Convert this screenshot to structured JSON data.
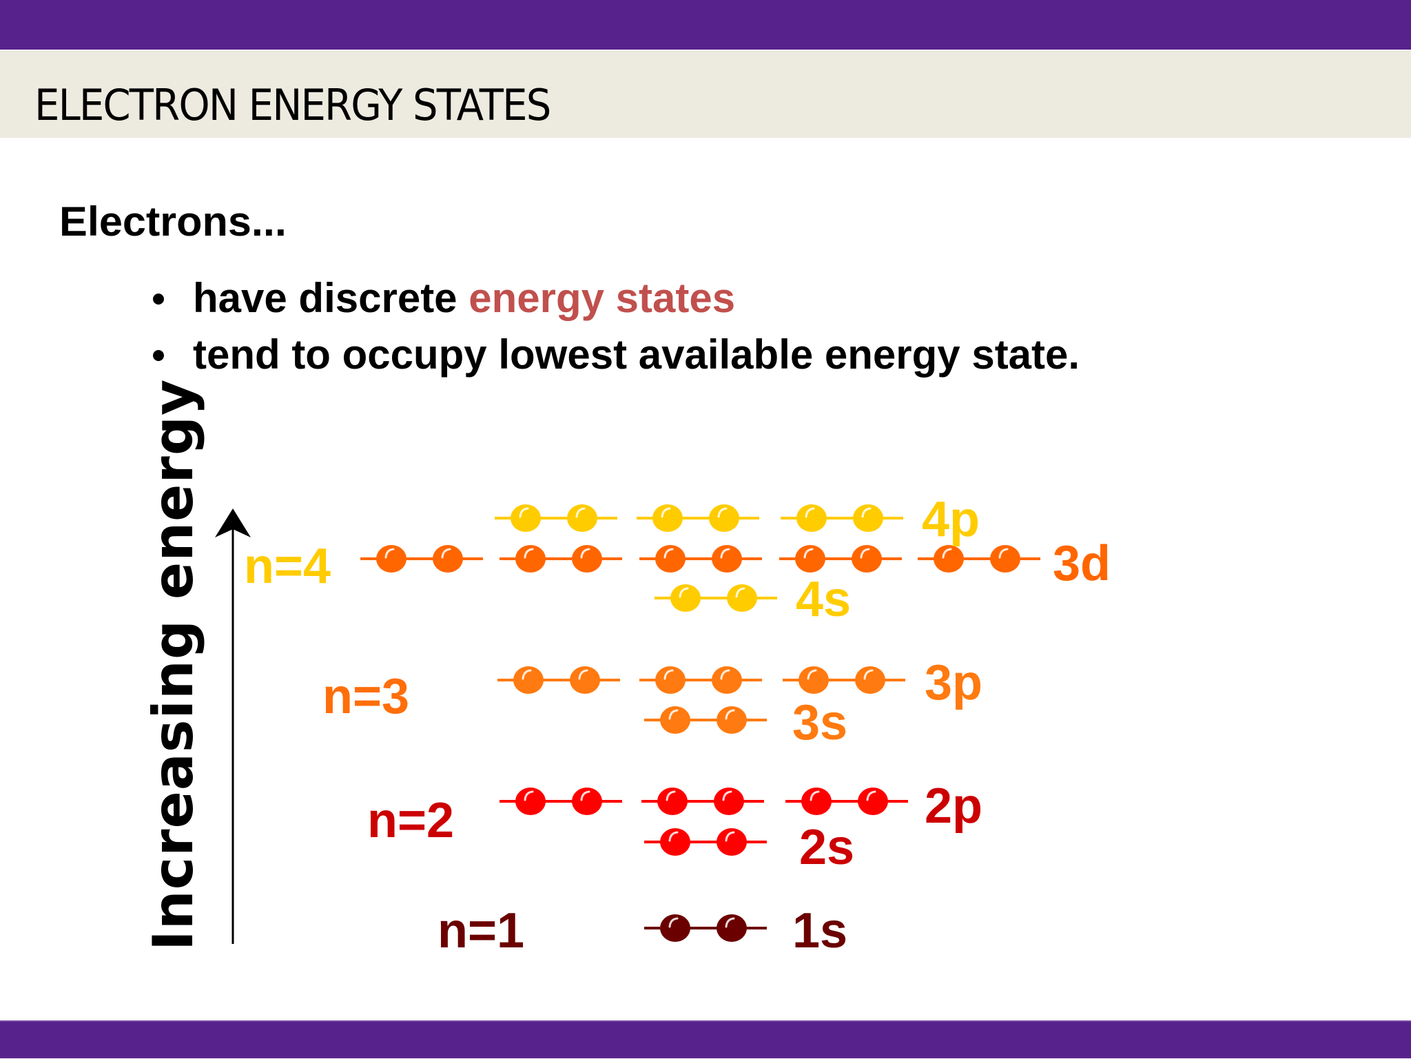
{
  "slide": {
    "title": "ELECTRON ENERGY STATES",
    "intro": "Electrons...",
    "bullets": [
      {
        "prefix": "have discrete ",
        "highlight": "energy states",
        "suffix": ""
      },
      {
        "prefix": "tend to occupy lowest available energy state.",
        "highlight": "",
        "suffix": ""
      }
    ],
    "colors": {
      "bar": "#58228c",
      "header_bg": "#edeae0",
      "highlight": "#c0504d"
    }
  },
  "diagram": {
    "axis_label": "Increasing energy",
    "axis_icon": "up-arrow-icon",
    "shells": [
      {
        "label": "n=4",
        "color": "#ffcc00"
      },
      {
        "label": "n=3",
        "color": "#ff6e0a"
      },
      {
        "label": "n=2",
        "color": "#cc0000"
      },
      {
        "label": "n=1",
        "color": "#6b0000"
      }
    ],
    "orbitals": [
      {
        "label": "4p",
        "color": "#ffcc00",
        "boxes": 3,
        "electrons": 6
      },
      {
        "label": "3d",
        "color": "#ff6600",
        "boxes": 5,
        "electrons": 10
      },
      {
        "label": "4s",
        "color": "#ffcc00",
        "boxes": 1,
        "electrons": 2
      },
      {
        "label": "3p",
        "color": "#ff7a10",
        "boxes": 3,
        "electrons": 6
      },
      {
        "label": "3s",
        "color": "#ff7a10",
        "boxes": 1,
        "electrons": 2
      },
      {
        "label": "2p",
        "color": "#ff0000",
        "label_color": "#cc0000",
        "boxes": 3,
        "electrons": 6
      },
      {
        "label": "2s",
        "color": "#ff0000",
        "label_color": "#cc0000",
        "boxes": 1,
        "electrons": 2
      },
      {
        "label": "1s",
        "color": "#6b0000",
        "boxes": 1,
        "electrons": 2
      }
    ]
  }
}
